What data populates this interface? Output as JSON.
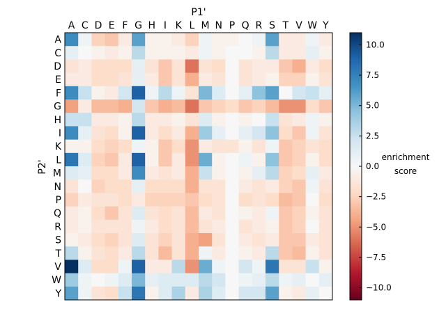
{
  "chart_data": {
    "type": "heatmap",
    "xlabel": "P1'",
    "ylabel": "P2'",
    "x_categories": [
      "A",
      "C",
      "D",
      "E",
      "F",
      "G",
      "H",
      "I",
      "K",
      "L",
      "M",
      "N",
      "P",
      "Q",
      "R",
      "S",
      "T",
      "V",
      "W",
      "Y"
    ],
    "y_categories": [
      "A",
      "C",
      "D",
      "E",
      "F",
      "G",
      "H",
      "I",
      "K",
      "L",
      "M",
      "N",
      "P",
      "Q",
      "R",
      "S",
      "T",
      "V",
      "W",
      "Y"
    ],
    "colorbar": {
      "label_line1": "enrichment",
      "label_line2": "score",
      "vmin": -11,
      "vmax": 11,
      "ticks": [
        10.0,
        7.5,
        5.0,
        2.5,
        0.0,
        -2.5,
        -5.0,
        -7.5,
        -10.0
      ],
      "tick_labels": [
        "10.0",
        "7.5",
        "5.0",
        "2.5",
        "0.0",
        "−2.5",
        "−5.0",
        "−7.5",
        "−10.0"
      ],
      "colormap": "RdBu"
    },
    "values": [
      [
        7.0,
        0.5,
        -2.5,
        -3.0,
        -1.0,
        6.0,
        -0.5,
        -0.5,
        -1.0,
        -2.5,
        0.5,
        -0.5,
        -0.5,
        0.0,
        0.5,
        6.0,
        -1.0,
        -1.0,
        0.5,
        -1.0
      ],
      [
        1.0,
        0.0,
        -0.5,
        -1.0,
        -0.5,
        3.0,
        -0.5,
        -0.5,
        -0.5,
        -1.0,
        0.5,
        -0.5,
        0.0,
        0.0,
        -0.5,
        3.0,
        -1.0,
        -1.0,
        1.0,
        -0.5
      ],
      [
        -1.5,
        -1.0,
        -2.0,
        -2.0,
        -2.0,
        1.0,
        -1.5,
        -3.0,
        -1.5,
        -6.0,
        -1.5,
        -2.0,
        0.0,
        -1.5,
        -1.0,
        -1.0,
        -3.0,
        -4.0,
        -1.0,
        -2.0
      ],
      [
        -1.0,
        -1.0,
        -2.0,
        -2.0,
        -1.5,
        1.0,
        -1.0,
        -3.0,
        -1.5,
        -4.0,
        -1.0,
        -1.5,
        0.0,
        -1.5,
        -1.0,
        -0.5,
        -2.5,
        -2.5,
        -0.5,
        -1.5
      ],
      [
        7.0,
        2.5,
        -0.5,
        -1.0,
        2.0,
        9.0,
        0.5,
        3.0,
        0.5,
        -1.5,
        5.0,
        1.5,
        0.0,
        1.0,
        4.5,
        6.0,
        0.0,
        2.0,
        2.5,
        1.0
      ],
      [
        -4.5,
        -1.0,
        -3.5,
        -3.5,
        -4.0,
        2.0,
        -3.0,
        -4.0,
        -3.5,
        -6.0,
        -3.0,
        -2.5,
        -2.0,
        -3.0,
        -2.5,
        -3.5,
        -5.0,
        -5.0,
        -2.0,
        -3.0
      ],
      [
        2.5,
        2.5,
        -1.0,
        -1.0,
        -0.5,
        3.0,
        -1.0,
        -1.0,
        -0.5,
        -1.5,
        1.5,
        -0.5,
        0.0,
        -0.5,
        0.0,
        2.5,
        -1.5,
        -1.0,
        0.5,
        -0.5
      ],
      [
        7.0,
        1.0,
        -1.5,
        -2.0,
        -0.5,
        9.0,
        -1.0,
        -2.0,
        -1.0,
        -4.0,
        4.0,
        1.0,
        0.0,
        1.0,
        2.0,
        4.5,
        -2.0,
        -3.0,
        0.5,
        -1.5
      ],
      [
        -0.5,
        -0.5,
        -2.0,
        -2.5,
        -2.0,
        0.5,
        -0.5,
        -3.0,
        -2.0,
        -5.0,
        -1.0,
        -1.5,
        -1.5,
        -0.5,
        -1.5,
        0.5,
        -3.0,
        -2.5,
        -1.5,
        -2.0
      ],
      [
        8.0,
        1.5,
        -2.5,
        -3.0,
        -1.0,
        9.0,
        -0.5,
        -3.0,
        -1.0,
        -5.0,
        5.5,
        -0.5,
        0.0,
        0.5,
        -0.5,
        4.5,
        -3.0,
        -2.5,
        -0.5,
        -2.0
      ],
      [
        1.5,
        1.0,
        -2.0,
        -2.0,
        -1.0,
        7.0,
        -1.0,
        -1.5,
        -1.0,
        -4.0,
        2.5,
        -0.5,
        0.0,
        -0.5,
        1.0,
        3.0,
        -2.5,
        -2.0,
        1.0,
        -1.0
      ],
      [
        -1.5,
        0.0,
        -2.5,
        -2.0,
        -2.0,
        1.0,
        -2.0,
        -2.0,
        -2.0,
        -4.0,
        -1.5,
        -1.5,
        0.0,
        -1.0,
        -1.5,
        -1.0,
        -2.5,
        -3.0,
        0.5,
        -1.5
      ],
      [
        -2.5,
        -1.0,
        -1.5,
        -1.5,
        -2.0,
        -1.0,
        -2.5,
        -2.5,
        -2.5,
        -3.0,
        -2.0,
        -1.5,
        0.0,
        -2.0,
        -1.5,
        -2.0,
        -3.5,
        -3.0,
        0.0,
        -2.0
      ],
      [
        -1.0,
        -0.5,
        -2.0,
        -3.0,
        -1.5,
        1.5,
        -1.5,
        -2.0,
        -1.5,
        -3.5,
        -1.0,
        -1.5,
        0.0,
        -0.5,
        -1.0,
        0.5,
        -3.0,
        -2.5,
        -0.5,
        -1.5
      ],
      [
        -1.0,
        -0.5,
        -1.5,
        -1.5,
        -1.5,
        0.5,
        -1.0,
        -2.0,
        -1.5,
        -3.5,
        -1.5,
        -1.0,
        0.0,
        -1.5,
        -1.0,
        -0.5,
        -3.0,
        -2.5,
        0.0,
        -1.5
      ],
      [
        -0.5,
        -1.0,
        -2.0,
        -2.5,
        -1.5,
        1.5,
        -1.5,
        -2.5,
        -1.5,
        -4.0,
        -4.5,
        -1.5,
        0.0,
        -1.0,
        -1.5,
        -1.0,
        -3.0,
        -3.0,
        -1.0,
        -1.5
      ],
      [
        3.0,
        -0.5,
        -1.5,
        -2.0,
        -1.0,
        3.0,
        -1.5,
        -3.5,
        -1.5,
        -4.0,
        0.5,
        -1.0,
        0.0,
        -0.5,
        -1.0,
        3.0,
        -3.0,
        -3.5,
        -0.5,
        -1.5
      ],
      [
        11.0,
        1.5,
        -2.0,
        -2.0,
        0.5,
        9.0,
        -1.0,
        -1.0,
        3.0,
        -5.0,
        5.5,
        0.5,
        0.0,
        2.0,
        0.5,
        8.0,
        -1.5,
        -1.5,
        2.5,
        -0.5
      ],
      [
        4.0,
        0.5,
        0.0,
        0.5,
        1.5,
        5.0,
        1.0,
        1.5,
        1.5,
        1.5,
        3.0,
        2.0,
        0.0,
        0.5,
        1.0,
        3.0,
        0.5,
        1.0,
        0.0,
        1.0
      ],
      [
        6.0,
        0.5,
        -1.5,
        -2.0,
        2.5,
        8.0,
        -0.5,
        1.5,
        3.5,
        -1.0,
        3.5,
        1.5,
        0.0,
        2.0,
        2.0,
        6.0,
        -0.5,
        -1.0,
        1.0,
        0.0
      ]
    ]
  }
}
